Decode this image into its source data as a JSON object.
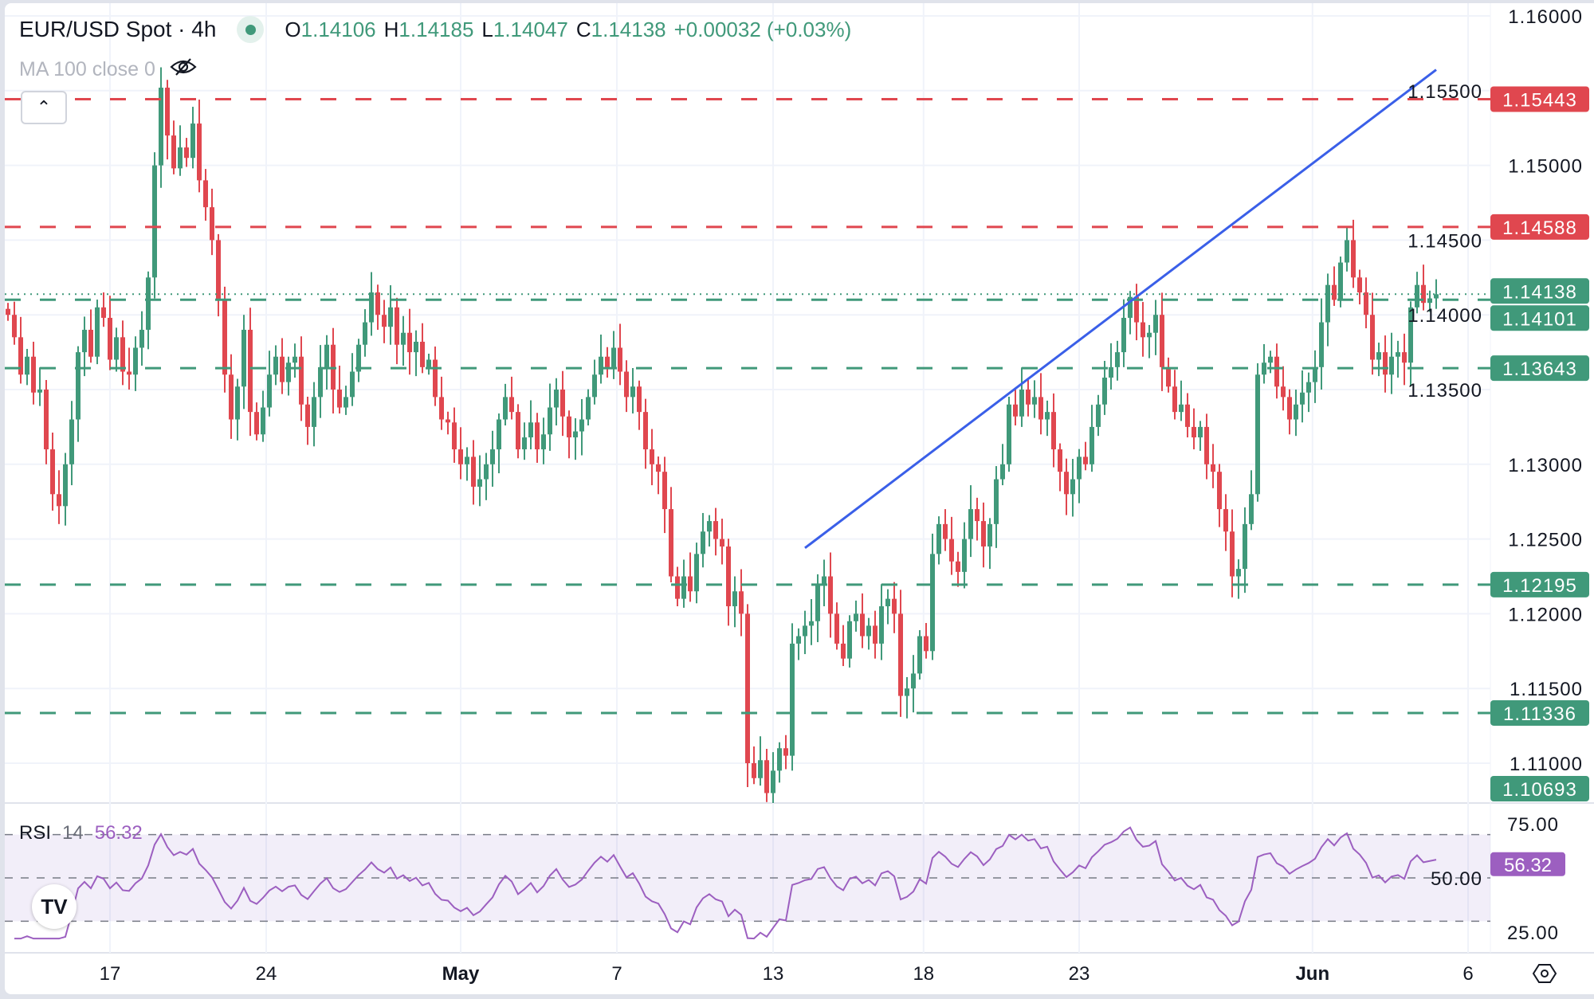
{
  "header": {
    "symbol": "EUR/USD Spot · 4h",
    "status_color": "#40997a",
    "open_label": "O",
    "open": "1.14106",
    "high_label": "H",
    "high": "1.14185",
    "low_label": "L",
    "low": "1.14047",
    "close_label": "C",
    "close": "1.14138",
    "change": "+0.00032 (+0.03%)"
  },
  "indicator": {
    "label": "MA 100 close 0",
    "visibility_icon": "eye-off-icon"
  },
  "collapse_icon": "chevron-up-icon",
  "rsi": {
    "name": "RSI",
    "period": "14",
    "value": "56.32",
    "tag": "56.32",
    "color": "#9c5fc0",
    "axis_labels": [
      "75.00",
      "50.00",
      "25.00"
    ],
    "levels": [
      70,
      50,
      30
    ],
    "range": [
      25,
      75
    ]
  },
  "colors": {
    "up": "#40997a",
    "down": "#e0474f",
    "trendline": "#3a5fe8",
    "resistance": "#e0474f",
    "support": "#40997a"
  },
  "chart_data": {
    "type": "candlestick",
    "title": "EUR/USD Spot · 4h",
    "ylim": [
      1.105,
      1.16
    ],
    "grid": true,
    "y_ticks": [
      "1.16000",
      "1.15500",
      "1.15000",
      "1.14500",
      "1.14000",
      "1.13500",
      "1.13000",
      "1.12500",
      "1.12000",
      "1.11500",
      "1.11000"
    ],
    "x_ticks": [
      "17",
      "24",
      "May",
      "7",
      "13",
      "18",
      "23",
      "Jun",
      "6"
    ],
    "closes": [
      1.14,
      1.1385,
      1.136,
      1.1372,
      1.1348,
      1.135,
      1.131,
      1.128,
      1.1272,
      1.13,
      1.133,
      1.1375,
      1.139,
      1.1372,
      1.1405,
      1.1398,
      1.137,
      1.1385,
      1.1362,
      1.136,
      1.1378,
      1.139,
      1.1425,
      1.15,
      1.1552,
      1.152,
      1.1498,
      1.1512,
      1.1505,
      1.1528,
      1.149,
      1.1472,
      1.145,
      1.141,
      1.136,
      1.133,
      1.1352,
      1.139,
      1.1335,
      1.132,
      1.1338,
      1.136,
      1.1372,
      1.1355,
      1.1368,
      1.1372,
      1.134,
      1.1325,
      1.1345,
      1.1365,
      1.138,
      1.135,
      1.1338,
      1.1345,
      1.1362,
      1.138,
      1.1395,
      1.1415,
      1.14,
      1.1392,
      1.1405,
      1.138,
      1.1388,
      1.1375,
      1.1382,
      1.1365,
      1.137,
      1.1345,
      1.133,
      1.1328,
      1.131,
      1.13,
      1.1305,
      1.1285,
      1.129,
      1.13,
      1.131,
      1.133,
      1.1345,
      1.1335,
      1.131,
      1.1318,
      1.1328,
      1.131,
      1.132,
      1.1338,
      1.135,
      1.1332,
      1.1318,
      1.1322,
      1.133,
      1.1345,
      1.136,
      1.1372,
      1.1365,
      1.1378,
      1.1362,
      1.1345,
      1.1352,
      1.1335,
      1.131,
      1.13,
      1.1295,
      1.127,
      1.1225,
      1.121,
      1.1225,
      1.1215,
      1.124,
      1.1255,
      1.1262,
      1.125,
      1.1245,
      1.1205,
      1.1215,
      1.12,
      1.11,
      1.109,
      1.1102,
      1.108,
      1.1095,
      1.111,
      1.1105,
      1.118,
      1.1185,
      1.1192,
      1.1195,
      1.122,
      1.1225,
      1.12,
      1.118,
      1.117,
      1.1195,
      1.12,
      1.1185,
      1.1192,
      1.118,
      1.1205,
      1.121,
      1.12,
      1.1145,
      1.115,
      1.116,
      1.1185,
      1.1175,
      1.124,
      1.126,
      1.125,
      1.1235,
      1.1228,
      1.125,
      1.127,
      1.1262,
      1.1245,
      1.126,
      1.129,
      1.13,
      1.134,
      1.1332,
      1.135,
      1.134,
      1.1345,
      1.133,
      1.1335,
      1.131,
      1.1295,
      1.128,
      1.129,
      1.1305,
      1.13,
      1.1325,
      1.134,
      1.1358,
      1.1365,
      1.1375,
      1.1398,
      1.1412,
      1.1395,
      1.1385,
      1.1388,
      1.14,
      1.1365,
      1.1352,
      1.1335,
      1.134,
      1.1325,
      1.1318,
      1.1325,
      1.13,
      1.1295,
      1.127,
      1.1255,
      1.1225,
      1.123,
      1.126,
      1.128,
      1.136,
      1.1368,
      1.1372,
      1.1352,
      1.1345,
      1.133,
      1.134,
      1.1348,
      1.1355,
      1.1365,
      1.1395,
      1.142,
      1.141,
      1.1435,
      1.145,
      1.1425,
      1.1415,
      1.14,
      1.137,
      1.1375,
      1.136,
      1.1372,
      1.1375,
      1.1368,
      1.1405,
      1.142,
      1.1408,
      1.1411,
      1.14138
    ],
    "levels": [
      {
        "price": 1.15443,
        "label": "1.15443",
        "kind": "resistance"
      },
      {
        "price": 1.14588,
        "label": "1.14588",
        "kind": "resistance"
      },
      {
        "price": 1.14101,
        "label": "1.14101",
        "kind": "support"
      },
      {
        "price": 1.13643,
        "label": "1.13643",
        "kind": "support"
      },
      {
        "price": 1.12195,
        "label": "1.12195",
        "kind": "support"
      },
      {
        "price": 1.11336,
        "label": "1.11336",
        "kind": "support"
      }
    ],
    "last_price": {
      "price": 1.14138,
      "label": "1.14138"
    },
    "low_marker": {
      "price": 1.10693,
      "label": "1.10693"
    },
    "trendline": {
      "start_bar": 125,
      "start_price": 1.1244,
      "end_bar": 224,
      "end_price": 1.1564
    }
  }
}
